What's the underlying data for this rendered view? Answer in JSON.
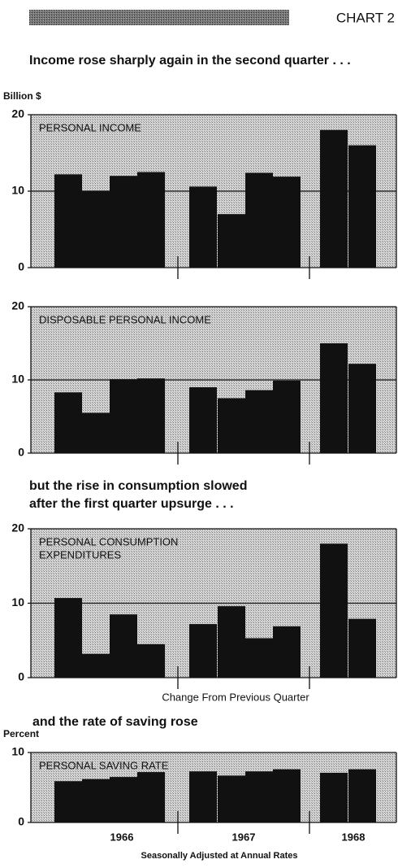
{
  "header": {
    "label": "CHART 2"
  },
  "headlines": [
    "Income rose sharply again in the second quarter . . .",
    "but the rise in consumption slowed",
    "after the first quarter upsurge . . .",
    "and the rate of saving rose"
  ],
  "notes": {
    "change": "Change From Previous Quarter",
    "seasonal": "Seasonally Adjusted at Annual Rates"
  },
  "chart_data": [
    {
      "type": "bar",
      "unit_label": "Billion $",
      "title_lines": [
        "PERSONAL INCOME"
      ],
      "color": "#111111",
      "values": [
        12.2,
        10.0,
        12.0,
        12.5,
        10.6,
        7.0,
        12.4,
        11.9,
        18.0,
        16.0
      ],
      "ylim": [
        0,
        20
      ],
      "yticks": [
        0,
        10,
        20
      ],
      "grid": true
    },
    {
      "type": "bar",
      "title_lines": [
        "DISPOSABLE PERSONAL INCOME"
      ],
      "color": "#111111",
      "values": [
        8.3,
        5.5,
        10.1,
        10.2,
        9.0,
        7.5,
        8.6,
        9.9,
        15.0,
        12.2
      ],
      "ylim": [
        0,
        20
      ],
      "yticks": [
        0,
        10,
        20
      ],
      "grid": true
    },
    {
      "type": "bar",
      "title_lines": [
        "PERSONAL CONSUMPTION",
        "EXPENDITURES"
      ],
      "color": "#111111",
      "values": [
        10.7,
        3.2,
        8.5,
        4.5,
        7.2,
        9.6,
        5.3,
        6.9,
        18.0,
        7.9
      ],
      "ylim": [
        0,
        20
      ],
      "yticks": [
        0,
        10,
        20
      ],
      "grid": true
    },
    {
      "type": "bar",
      "unit_label": "Percent",
      "title_lines": [
        "PERSONAL SAVING RATE"
      ],
      "color": "#111111",
      "values": [
        5.9,
        6.2,
        6.5,
        7.2,
        7.3,
        6.7,
        7.3,
        7.6,
        7.1,
        7.6
      ],
      "ylim": [
        0,
        10
      ],
      "yticks": [
        0,
        10
      ],
      "grid": true,
      "year_labels": [
        "1966",
        "1967",
        "1968"
      ]
    }
  ]
}
